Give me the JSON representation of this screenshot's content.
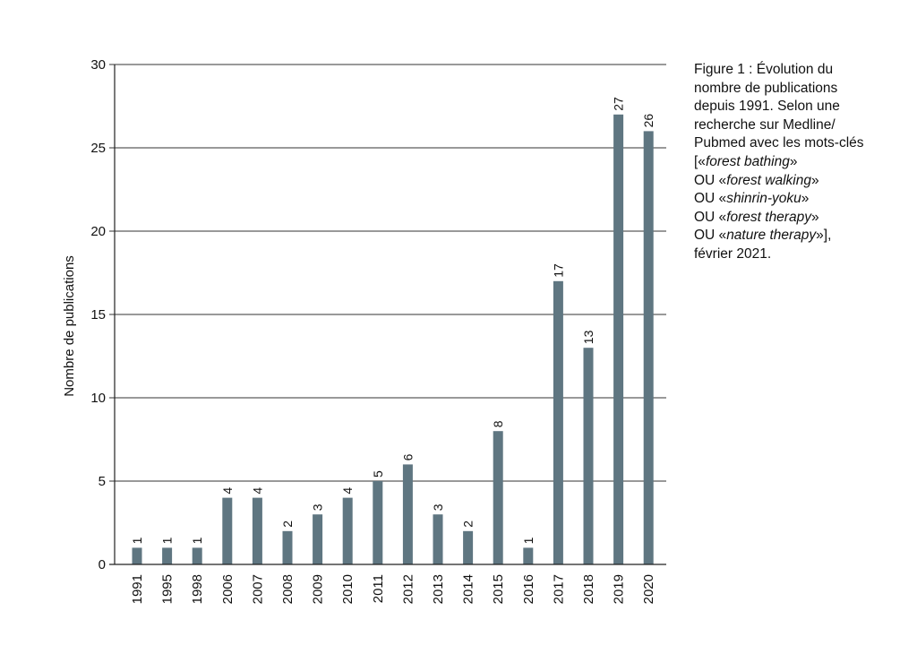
{
  "chart_data": {
    "type": "bar",
    "categories": [
      "1991",
      "1995",
      "1998",
      "2006",
      "2007",
      "2008",
      "2009",
      "2010",
      "2011",
      "2012",
      "2013",
      "2014",
      "2015",
      "2016",
      "2017",
      "2018",
      "2019",
      "2020"
    ],
    "values": [
      1,
      1,
      1,
      4,
      4,
      2,
      3,
      4,
      5,
      6,
      3,
      2,
      8,
      1,
      17,
      13,
      27,
      26
    ],
    "data_labels": [
      "1",
      "1",
      "1",
      "4",
      "4",
      "2",
      "3",
      "4",
      "5",
      "6",
      "3",
      "2",
      "8",
      "1",
      "17",
      "13",
      "27",
      "26"
    ],
    "ylabel": "Nombre de publications",
    "xlabel": "",
    "ylim": [
      0,
      30
    ],
    "yticks": [
      0,
      5,
      10,
      15,
      20,
      25,
      30
    ],
    "grid": true,
    "bar_color": "#5f7681"
  },
  "caption": {
    "line1": "Figure 1 : Évolution du",
    "line2": "nombre de publications",
    "line3": "depuis 1991. Selon une",
    "line4": "recherche sur Medline/",
    "line5": "Pubmed avec les mots-clés",
    "line6_prefix": "[«",
    "line6_term": "forest bathing",
    "line6_suffix": "»",
    "line7_prefix": "OU «",
    "line7_term": "forest walking",
    "line7_suffix": "»",
    "line8_prefix": "OU «",
    "line8_term": "shinrin-yoku",
    "line8_suffix": "»",
    "line9_prefix": "OU «",
    "line9_term": "forest therapy",
    "line9_suffix": "»",
    "line10_prefix": "OU «",
    "line10_term": "nature therapy",
    "line10_suffix": "»],",
    "line11": "février 2021."
  }
}
